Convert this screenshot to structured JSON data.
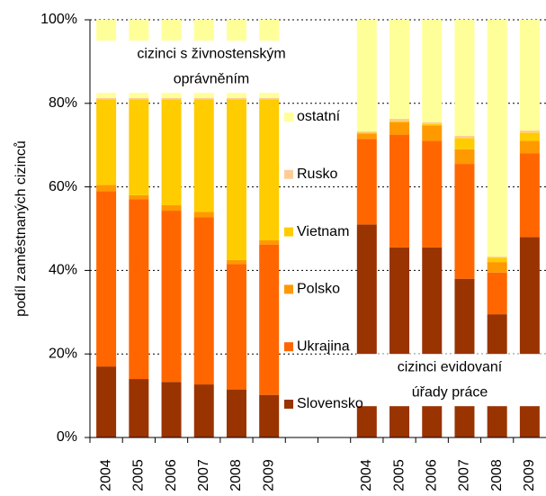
{
  "chart_data": {
    "type": "stacked_bar",
    "y_label": "podíl zaměstnaných cizinců",
    "categories": [
      "2004",
      "2005",
      "2006",
      "2007",
      "2008",
      "2009",
      null,
      null,
      "2004",
      "2005",
      "2006",
      "2007",
      "2008",
      "2009"
    ],
    "series": [
      {
        "name": "Slovensko",
        "color": "#993300",
        "values": [
          17,
          14,
          13.3,
          12.7,
          11.5,
          10.2,
          null,
          null,
          51,
          45.5,
          45.5,
          38,
          29.5,
          48
        ]
      },
      {
        "name": "Ukrajina",
        "color": "#ff6600",
        "values": [
          42,
          43,
          41,
          40,
          30,
          36,
          null,
          null,
          20.5,
          27,
          25.5,
          27.5,
          10,
          20
        ]
      },
      {
        "name": "Polsko",
        "color": "#ff9900",
        "values": [
          1.5,
          1,
          1.3,
          1.3,
          1,
          1,
          null,
          null,
          1.3,
          3,
          3.7,
          3.5,
          2.5,
          3
        ]
      },
      {
        "name": "Vietnam",
        "color": "#ffcc00",
        "values": [
          20.5,
          23,
          25.4,
          27,
          38.5,
          33.8,
          null,
          null,
          0.2,
          0.3,
          0.3,
          2.7,
          1,
          2
        ]
      },
      {
        "name": "Rusko",
        "color": "#ffcc99",
        "values": [
          0.3,
          0.3,
          0.3,
          0.3,
          0.3,
          0.3,
          null,
          null,
          0.3,
          0.5,
          0.5,
          0.5,
          0.3,
          0.5
        ]
      },
      {
        "name": "ostatní",
        "color": "#ffff99",
        "values": [
          18.7,
          18.7,
          18.7,
          18.7,
          18.7,
          18.7,
          null,
          null,
          26.7,
          23.7,
          24.5,
          27.8,
          56.7,
          26.5
        ]
      }
    ],
    "annotations": [
      [
        "cizinci s živnostenským",
        "oprávněním"
      ],
      [
        "cizinci evidovaní",
        "úřady práce"
      ]
    ],
    "ylim": [
      0,
      100
    ],
    "yticks": [
      {
        "value": 0,
        "label": "0%"
      },
      {
        "value": 20,
        "label": "20%"
      },
      {
        "value": 40,
        "label": "40%"
      },
      {
        "value": 60,
        "label": "60%"
      },
      {
        "value": 80,
        "label": "80%"
      },
      {
        "value": 100,
        "label": "100%"
      }
    ],
    "grid": true
  }
}
